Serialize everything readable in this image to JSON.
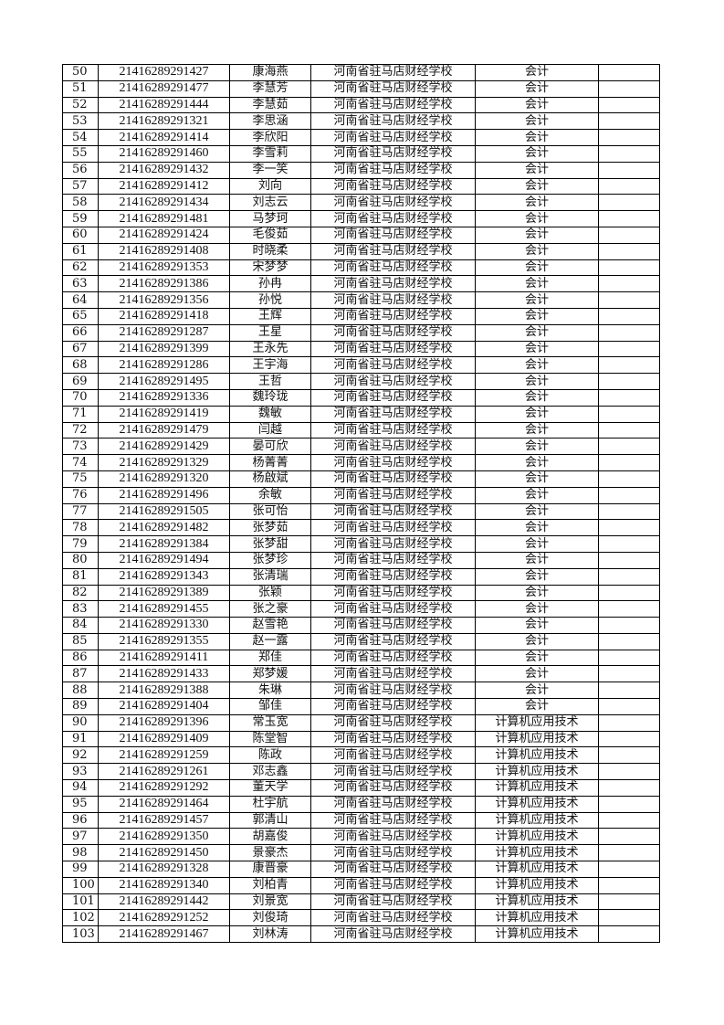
{
  "table": {
    "rows": [
      {
        "no": "50",
        "id": "21416289291427",
        "name": "康海燕",
        "school": "河南省驻马店财经学校",
        "major": "会计",
        "note": ""
      },
      {
        "no": "51",
        "id": "21416289291477",
        "name": "李慧芳",
        "school": "河南省驻马店财经学校",
        "major": "会计",
        "note": ""
      },
      {
        "no": "52",
        "id": "21416289291444",
        "name": "李慧茹",
        "school": "河南省驻马店财经学校",
        "major": "会计",
        "note": ""
      },
      {
        "no": "53",
        "id": "21416289291321",
        "name": "李思涵",
        "school": "河南省驻马店财经学校",
        "major": "会计",
        "note": ""
      },
      {
        "no": "54",
        "id": "21416289291414",
        "name": "李欣阳",
        "school": "河南省驻马店财经学校",
        "major": "会计",
        "note": ""
      },
      {
        "no": "55",
        "id": "21416289291460",
        "name": "李雪莉",
        "school": "河南省驻马店财经学校",
        "major": "会计",
        "note": ""
      },
      {
        "no": "56",
        "id": "21416289291432",
        "name": "李一笑",
        "school": "河南省驻马店财经学校",
        "major": "会计",
        "note": ""
      },
      {
        "no": "57",
        "id": "21416289291412",
        "name": "刘向",
        "school": "河南省驻马店财经学校",
        "major": "会计",
        "note": ""
      },
      {
        "no": "58",
        "id": "21416289291434",
        "name": "刘志云",
        "school": "河南省驻马店财经学校",
        "major": "会计",
        "note": ""
      },
      {
        "no": "59",
        "id": "21416289291481",
        "name": "马梦珂",
        "school": "河南省驻马店财经学校",
        "major": "会计",
        "note": ""
      },
      {
        "no": "60",
        "id": "21416289291424",
        "name": "毛俊茹",
        "school": "河南省驻马店财经学校",
        "major": "会计",
        "note": ""
      },
      {
        "no": "61",
        "id": "21416289291408",
        "name": "时晓柔",
        "school": "河南省驻马店财经学校",
        "major": "会计",
        "note": ""
      },
      {
        "no": "62",
        "id": "21416289291353",
        "name": "宋梦梦",
        "school": "河南省驻马店财经学校",
        "major": "会计",
        "note": ""
      },
      {
        "no": "63",
        "id": "21416289291386",
        "name": "孙冉",
        "school": "河南省驻马店财经学校",
        "major": "会计",
        "note": ""
      },
      {
        "no": "64",
        "id": "21416289291356",
        "name": "孙悦",
        "school": "河南省驻马店财经学校",
        "major": "会计",
        "note": ""
      },
      {
        "no": "65",
        "id": "21416289291418",
        "name": "王辉",
        "school": "河南省驻马店财经学校",
        "major": "会计",
        "note": ""
      },
      {
        "no": "66",
        "id": "21416289291287",
        "name": "王星",
        "school": "河南省驻马店财经学校",
        "major": "会计",
        "note": ""
      },
      {
        "no": "67",
        "id": "21416289291399",
        "name": "王永先",
        "school": "河南省驻马店财经学校",
        "major": "会计",
        "note": ""
      },
      {
        "no": "68",
        "id": "21416289291286",
        "name": "王宇海",
        "school": "河南省驻马店财经学校",
        "major": "会计",
        "note": ""
      },
      {
        "no": "69",
        "id": "21416289291495",
        "name": "王哲",
        "school": "河南省驻马店财经学校",
        "major": "会计",
        "note": ""
      },
      {
        "no": "70",
        "id": "21416289291336",
        "name": "魏玲珑",
        "school": "河南省驻马店财经学校",
        "major": "会计",
        "note": ""
      },
      {
        "no": "71",
        "id": "21416289291419",
        "name": "魏敏",
        "school": "河南省驻马店财经学校",
        "major": "会计",
        "note": ""
      },
      {
        "no": "72",
        "id": "21416289291479",
        "name": "闫越",
        "school": "河南省驻马店财经学校",
        "major": "会计",
        "note": ""
      },
      {
        "no": "73",
        "id": "21416289291429",
        "name": "晏可欣",
        "school": "河南省驻马店财经学校",
        "major": "会计",
        "note": ""
      },
      {
        "no": "74",
        "id": "21416289291329",
        "name": "杨菁菁",
        "school": "河南省驻马店财经学校",
        "major": "会计",
        "note": ""
      },
      {
        "no": "75",
        "id": "21416289291320",
        "name": "杨啟斌",
        "school": "河南省驻马店财经学校",
        "major": "会计",
        "note": ""
      },
      {
        "no": "76",
        "id": "21416289291496",
        "name": "余敏",
        "school": "河南省驻马店财经学校",
        "major": "会计",
        "note": ""
      },
      {
        "no": "77",
        "id": "21416289291505",
        "name": "张可怡",
        "school": "河南省驻马店财经学校",
        "major": "会计",
        "note": ""
      },
      {
        "no": "78",
        "id": "21416289291482",
        "name": "张梦茹",
        "school": "河南省驻马店财经学校",
        "major": "会计",
        "note": ""
      },
      {
        "no": "79",
        "id": "21416289291384",
        "name": "张梦甜",
        "school": "河南省驻马店财经学校",
        "major": "会计",
        "note": ""
      },
      {
        "no": "80",
        "id": "21416289291494",
        "name": "张梦珍",
        "school": "河南省驻马店财经学校",
        "major": "会计",
        "note": ""
      },
      {
        "no": "81",
        "id": "21416289291343",
        "name": "张清瑞",
        "school": "河南省驻马店财经学校",
        "major": "会计",
        "note": ""
      },
      {
        "no": "82",
        "id": "21416289291389",
        "name": "张颖",
        "school": "河南省驻马店财经学校",
        "major": "会计",
        "note": ""
      },
      {
        "no": "83",
        "id": "21416289291455",
        "name": "张之豪",
        "school": "河南省驻马店财经学校",
        "major": "会计",
        "note": ""
      },
      {
        "no": "84",
        "id": "21416289291330",
        "name": "赵雪艳",
        "school": "河南省驻马店财经学校",
        "major": "会计",
        "note": ""
      },
      {
        "no": "85",
        "id": "21416289291355",
        "name": "赵一露",
        "school": "河南省驻马店财经学校",
        "major": "会计",
        "note": ""
      },
      {
        "no": "86",
        "id": "21416289291411",
        "name": "郑佳",
        "school": "河南省驻马店财经学校",
        "major": "会计",
        "note": ""
      },
      {
        "no": "87",
        "id": "21416289291433",
        "name": "郑梦媛",
        "school": "河南省驻马店财经学校",
        "major": "会计",
        "note": ""
      },
      {
        "no": "88",
        "id": "21416289291388",
        "name": "朱琳",
        "school": "河南省驻马店财经学校",
        "major": "会计",
        "note": ""
      },
      {
        "no": "89",
        "id": "21416289291404",
        "name": "邹佳",
        "school": "河南省驻马店财经学校",
        "major": "会计",
        "note": ""
      },
      {
        "no": "90",
        "id": "21416289291396",
        "name": "常玉宽",
        "school": "河南省驻马店财经学校",
        "major": "计算机应用技术",
        "note": ""
      },
      {
        "no": "91",
        "id": "21416289291409",
        "name": "陈堂智",
        "school": "河南省驻马店财经学校",
        "major": "计算机应用技术",
        "note": ""
      },
      {
        "no": "92",
        "id": "21416289291259",
        "name": "陈政",
        "school": "河南省驻马店财经学校",
        "major": "计算机应用技术",
        "note": ""
      },
      {
        "no": "93",
        "id": "21416289291261",
        "name": "邓志鑫",
        "school": "河南省驻马店财经学校",
        "major": "计算机应用技术",
        "note": ""
      },
      {
        "no": "94",
        "id": "21416289291292",
        "name": "董天学",
        "school": "河南省驻马店财经学校",
        "major": "计算机应用技术",
        "note": ""
      },
      {
        "no": "95",
        "id": "21416289291464",
        "name": "杜宇航",
        "school": "河南省驻马店财经学校",
        "major": "计算机应用技术",
        "note": ""
      },
      {
        "no": "96",
        "id": "21416289291457",
        "name": "郭清山",
        "school": "河南省驻马店财经学校",
        "major": "计算机应用技术",
        "note": ""
      },
      {
        "no": "97",
        "id": "21416289291350",
        "name": "胡嘉俊",
        "school": "河南省驻马店财经学校",
        "major": "计算机应用技术",
        "note": ""
      },
      {
        "no": "98",
        "id": "21416289291450",
        "name": "景豪杰",
        "school": "河南省驻马店财经学校",
        "major": "计算机应用技术",
        "note": ""
      },
      {
        "no": "99",
        "id": "21416289291328",
        "name": "康晋豪",
        "school": "河南省驻马店财经学校",
        "major": "计算机应用技术",
        "note": ""
      },
      {
        "no": "100",
        "id": "21416289291340",
        "name": "刘柏青",
        "school": "河南省驻马店财经学校",
        "major": "计算机应用技术",
        "note": ""
      },
      {
        "no": "101",
        "id": "21416289291442",
        "name": "刘景宽",
        "school": "河南省驻马店财经学校",
        "major": "计算机应用技术",
        "note": ""
      },
      {
        "no": "102",
        "id": "21416289291252",
        "name": "刘俊琦",
        "school": "河南省驻马店财经学校",
        "major": "计算机应用技术",
        "note": ""
      },
      {
        "no": "103",
        "id": "21416289291467",
        "name": "刘林涛",
        "school": "河南省驻马店财经学校",
        "major": "计算机应用技术",
        "note": ""
      }
    ]
  }
}
